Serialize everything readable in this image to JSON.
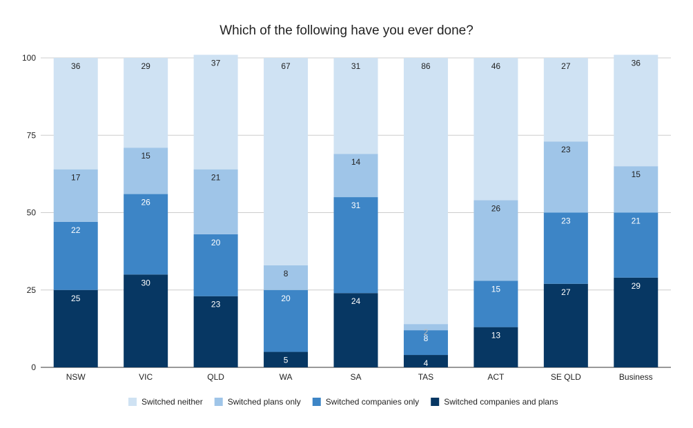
{
  "chart_data": {
    "type": "bar",
    "stacked": true,
    "title": "Which of the following have you ever done?",
    "xlabel": "",
    "ylabel": "",
    "ylim": [
      0,
      100
    ],
    "yticks": [
      0,
      25,
      50,
      75,
      100
    ],
    "grid": true,
    "legend_position": "bottom",
    "categories": [
      "NSW",
      "VIC",
      "QLD",
      "WA",
      "SA",
      "TAS",
      "ACT",
      "SE QLD",
      "Business"
    ],
    "series": [
      {
        "name": "Switched companies and plans",
        "color": "#073763",
        "label_color": "#ffffff",
        "values": [
          25,
          30,
          23,
          5,
          24,
          4,
          13,
          27,
          29
        ]
      },
      {
        "name": "Switched companies only",
        "color": "#3d85c6",
        "label_color": "#ffffff",
        "values": [
          22,
          26,
          20,
          20,
          31,
          8,
          15,
          23,
          21
        ]
      },
      {
        "name": "Switched plans only",
        "color": "#9fc5e8",
        "label_color": "#222222",
        "values": [
          17,
          15,
          21,
          8,
          14,
          2,
          26,
          23,
          15
        ]
      },
      {
        "name": "Switched neither",
        "color": "#cfe2f3",
        "label_color": "#222222",
        "values": [
          36,
          29,
          37,
          67,
          31,
          86,
          46,
          27,
          36
        ]
      }
    ],
    "legend_order": [
      "Switched neither",
      "Switched plans only",
      "Switched companies only",
      "Switched companies and plans"
    ],
    "special_label_colors": {
      "TAS|Switched plans only": "#bbbbbb"
    }
  }
}
